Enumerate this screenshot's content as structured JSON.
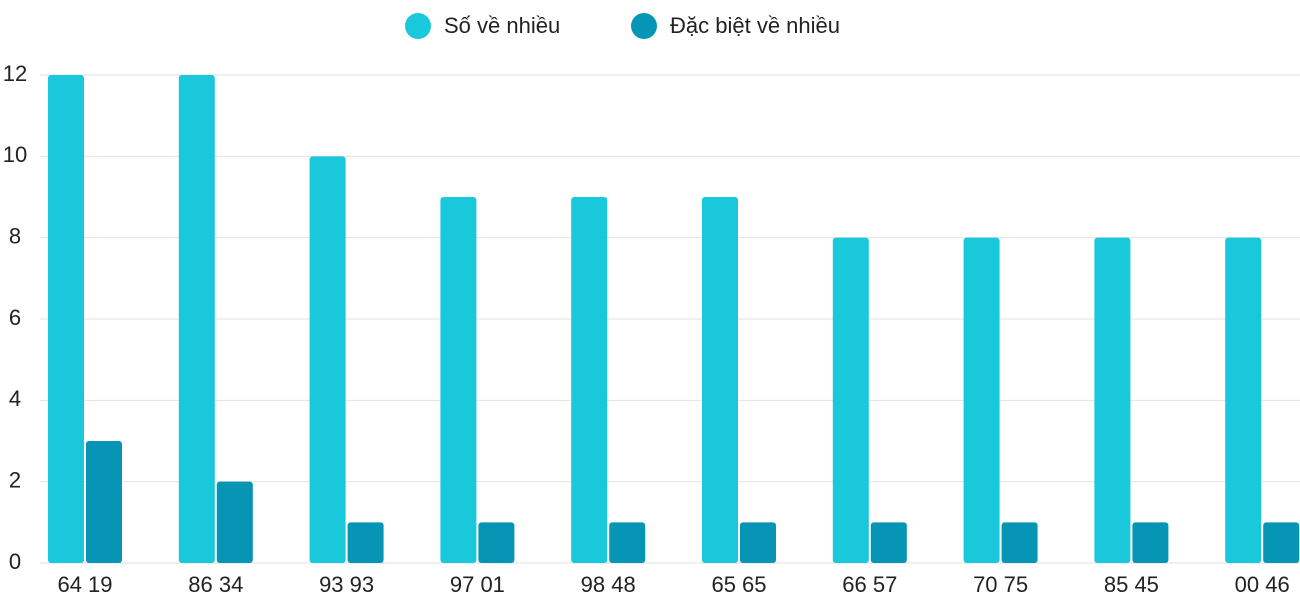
{
  "chart_data": {
    "type": "bar",
    "categories": [
      "64 19",
      "86 34",
      "93 93",
      "97 01",
      "98 48",
      "65 65",
      "66 57",
      "70 75",
      "85 45",
      "00 46"
    ],
    "series": [
      {
        "name": "Số về nhiều",
        "color": "#1ac8db",
        "values": [
          12,
          12,
          10,
          9,
          9,
          9,
          8,
          8,
          8,
          8
        ]
      },
      {
        "name": "Đặc biệt về nhiều",
        "color": "#0795b6",
        "values": [
          3,
          2,
          1,
          1,
          1,
          1,
          1,
          1,
          1,
          1
        ]
      }
    ],
    "ylim": [
      0,
      12
    ],
    "yticks": [
      0,
      2,
      4,
      6,
      8,
      10,
      12
    ],
    "grid": true,
    "legend": "top"
  }
}
